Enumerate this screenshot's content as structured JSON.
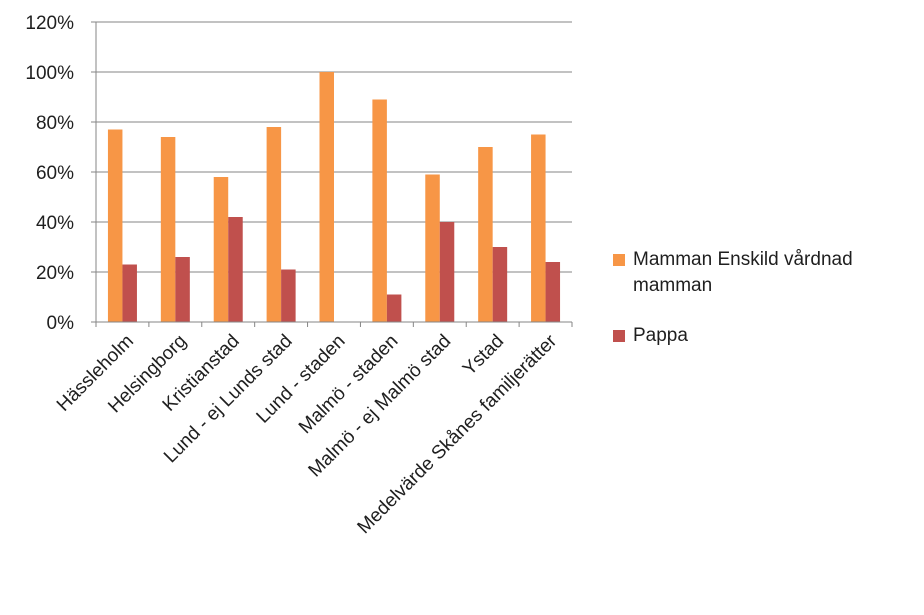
{
  "chart_data": {
    "type": "bar",
    "title": "",
    "xlabel": "",
    "ylabel": "",
    "ylim": [
      0,
      120
    ],
    "y_ticks": [
      "0%",
      "20%",
      "40%",
      "60%",
      "80%",
      "100%",
      "120%"
    ],
    "grid": true,
    "legend_position": "right",
    "categories": [
      "Hässleholm",
      "Helsingborg",
      "Kristianstad",
      "Lund  - ej Lunds stad",
      "Lund - staden",
      "Malmö - staden",
      "Malmö  - ej Malmö stad",
      "Ystad",
      "Medelvärde Skånes familjerätter"
    ],
    "series": [
      {
        "name": "Mamman Enskild vårdnad mamman",
        "color": "#f79646",
        "values": [
          77,
          74,
          58,
          78,
          100,
          89,
          59,
          70,
          75
        ]
      },
      {
        "name": "Pappa",
        "color": "#c0504d",
        "values": [
          23,
          26,
          42,
          21,
          0,
          11,
          40,
          30,
          24
        ]
      }
    ]
  }
}
